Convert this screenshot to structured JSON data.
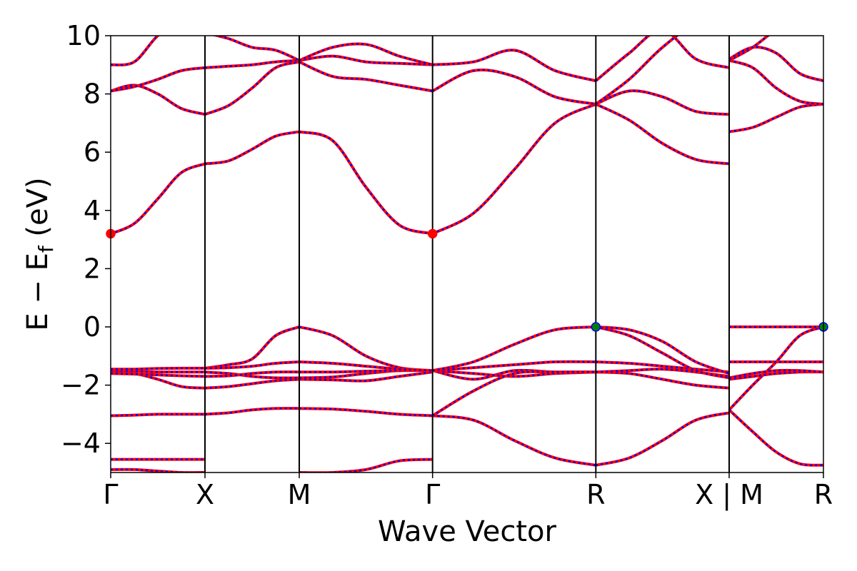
{
  "chart_data": {
    "type": "line",
    "title": "",
    "xlabel": "Wave Vector",
    "ylabel": "E − E_f (eV)",
    "ylim": [
      -5,
      10
    ],
    "yticks": [
      -4,
      -2,
      0,
      2,
      4,
      6,
      8,
      10
    ],
    "ytick_labels": [
      "−4",
      "−2",
      "0",
      "2",
      "4",
      "6",
      "8",
      "10"
    ],
    "kpoints": [
      {
        "label": "Γ",
        "x": 0.0
      },
      {
        "label": "X",
        "x": 0.5
      },
      {
        "label": "M",
        "x": 1.0
      },
      {
        "label": "Γ",
        "x": 1.707
      },
      {
        "label": "R",
        "x": 2.573
      },
      {
        "label": "X | M",
        "x": 3.28
      },
      {
        "label": "R",
        "x": 3.78
      }
    ],
    "xlim": [
      0,
      3.78
    ],
    "band_colors": {
      "line": "#ff0000",
      "dash": "#0000ff",
      "cbm_marker": "#ff0000",
      "vbm_marker": "#008000"
    },
    "segments": [
      {
        "name": "Γ–X",
        "x_range": [
          0.0,
          0.5
        ],
        "bands": [
          [
            -4.9,
            -4.9,
            -4.95,
            -5.0,
            -5.0
          ],
          [
            -4.55,
            -4.55,
            -4.55,
            -4.55,
            -4.55
          ],
          [
            -3.05,
            -3.03,
            -3.0,
            -3.0,
            -3.0
          ],
          [
            -1.55,
            -1.6,
            -1.8,
            -2.05,
            -2.1
          ],
          [
            -1.5,
            -1.52,
            -1.55,
            -1.55,
            -1.55
          ],
          [
            -1.6,
            -1.62,
            -1.65,
            -1.68,
            -1.7
          ],
          [
            -1.45,
            -1.45,
            -1.43,
            -1.42,
            -1.42
          ],
          [
            3.2,
            3.55,
            4.4,
            5.3,
            5.6
          ],
          [
            8.1,
            8.3,
            8.0,
            7.5,
            7.3
          ],
          [
            8.1,
            8.25,
            8.5,
            8.8,
            8.9
          ],
          [
            9.0,
            9.1,
            10.0,
            10.5,
            10.5
          ]
        ]
      },
      {
        "name": "X–M",
        "x_range": [
          0.5,
          1.0
        ],
        "bands": [
          [
            -3.0,
            -2.95,
            -2.85,
            -2.8,
            -2.8
          ],
          [
            -2.1,
            -2.05,
            -1.95,
            -1.85,
            -1.8
          ],
          [
            -1.55,
            -1.6,
            -1.7,
            -1.75,
            -1.75
          ],
          [
            -1.7,
            -1.68,
            -1.6,
            -1.55,
            -1.55
          ],
          [
            -1.42,
            -1.3,
            -1.1,
            -0.3,
            0.0
          ],
          [
            -1.42,
            -1.4,
            -1.35,
            -1.25,
            -1.2
          ],
          [
            5.6,
            5.7,
            6.1,
            6.55,
            6.7
          ],
          [
            7.3,
            7.6,
            8.2,
            8.9,
            9.1
          ],
          [
            8.9,
            8.95,
            9.0,
            9.1,
            9.15
          ],
          [
            10.1,
            9.9,
            9.6,
            9.5,
            9.15
          ]
        ]
      },
      {
        "name": "M–Γ",
        "x_range": [
          1.0,
          1.707
        ],
        "bands": [
          [
            -2.8,
            -2.82,
            -2.9,
            -3.0,
            -3.05
          ],
          [
            -1.8,
            -1.82,
            -1.85,
            -1.7,
            -1.55
          ],
          [
            -1.75,
            -1.72,
            -1.6,
            -1.5,
            -1.5
          ],
          [
            -1.55,
            -1.55,
            -1.52,
            -1.5,
            -1.5
          ],
          [
            0.0,
            -0.3,
            -1.0,
            -1.4,
            -1.5
          ],
          [
            -1.2,
            -1.25,
            -1.35,
            -1.45,
            -1.5
          ],
          [
            6.7,
            6.4,
            4.8,
            3.5,
            3.2
          ],
          [
            9.1,
            8.6,
            8.5,
            8.3,
            8.1
          ],
          [
            9.15,
            9.3,
            9.1,
            9.05,
            9.0
          ],
          [
            9.15,
            9.6,
            9.7,
            9.3,
            9.0
          ],
          [
            -5.0,
            -5.0,
            -4.9,
            -4.6,
            -4.55
          ]
        ]
      },
      {
        "name": "Γ–R",
        "x_range": [
          1.707,
          2.573
        ],
        "bands": [
          [
            -3.05,
            -3.2,
            -3.9,
            -4.5,
            -4.75
          ],
          [
            -1.5,
            -1.8,
            -1.5,
            -1.55,
            -1.55
          ],
          [
            -1.5,
            -1.6,
            -1.7,
            -1.6,
            -1.55
          ],
          [
            -1.5,
            -1.4,
            -1.3,
            -1.2,
            -1.2
          ],
          [
            -1.5,
            -1.2,
            -0.6,
            -0.1,
            0.0
          ],
          [
            -3.05,
            -2.2,
            -1.6,
            -1.55,
            -1.55
          ],
          [
            3.2,
            3.9,
            5.4,
            7.0,
            7.65
          ],
          [
            8.1,
            8.8,
            8.6,
            7.9,
            7.65
          ],
          [
            9.0,
            9.1,
            9.5,
            8.8,
            8.45
          ]
        ]
      },
      {
        "name": "R–X",
        "x_range": [
          2.573,
          3.28
        ],
        "bands": [
          [
            -4.75,
            -4.5,
            -3.9,
            -3.2,
            -2.95
          ],
          [
            -1.55,
            -1.6,
            -1.8,
            -2.0,
            -2.1
          ],
          [
            -1.55,
            -1.5,
            -1.45,
            -1.55,
            -1.7
          ],
          [
            -1.2,
            -1.25,
            -1.35,
            -1.45,
            -1.55
          ],
          [
            0.0,
            -0.1,
            -0.5,
            -1.2,
            -1.6
          ],
          [
            0.0,
            -0.3,
            -0.9,
            -1.5,
            -1.75
          ],
          [
            7.65,
            7.1,
            6.3,
            5.75,
            5.6
          ],
          [
            7.65,
            8.1,
            7.9,
            7.4,
            7.3
          ],
          [
            8.45,
            9.4,
            10.2,
            9.2,
            8.9
          ],
          [
            7.65,
            8.5,
            9.6,
            10.4,
            10.5
          ]
        ]
      },
      {
        "name": "M–R",
        "x_range": [
          3.28,
          3.78
        ],
        "bands": [
          [
            -2.85,
            -3.6,
            -4.3,
            -4.7,
            -4.75
          ],
          [
            -2.85,
            -2.0,
            -1.2,
            -0.3,
            0.0
          ],
          [
            0.0,
            0.0,
            0.0,
            0.0,
            0.0
          ],
          [
            -1.8,
            -1.7,
            -1.6,
            -1.55,
            -1.55
          ],
          [
            -1.75,
            -1.6,
            -1.5,
            -1.5,
            -1.55
          ],
          [
            -1.2,
            -1.2,
            -1.2,
            -1.2,
            -1.2
          ],
          [
            6.7,
            6.85,
            7.2,
            7.55,
            7.65
          ],
          [
            9.15,
            8.9,
            8.2,
            7.75,
            7.65
          ],
          [
            9.15,
            9.6,
            10.2,
            10.5,
            10.5
          ],
          [
            9.2,
            9.6,
            9.4,
            8.7,
            8.45
          ]
        ]
      }
    ],
    "markers": [
      {
        "x": 0.0,
        "y": 3.2,
        "kind": "cbm"
      },
      {
        "x": 1.707,
        "y": 3.2,
        "kind": "cbm"
      },
      {
        "x": 2.573,
        "y": 0.0,
        "kind": "vbm"
      },
      {
        "x": 3.78,
        "y": 0.0,
        "kind": "vbm"
      }
    ]
  }
}
